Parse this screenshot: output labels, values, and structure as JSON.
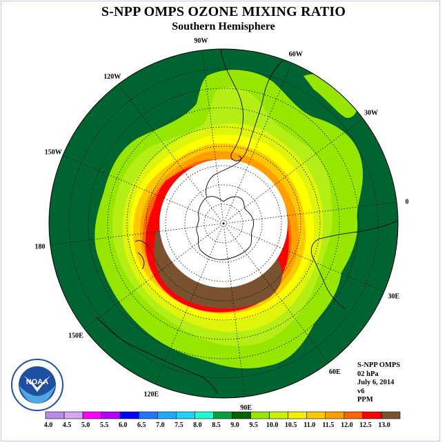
{
  "title": "S-NPP OMPS OZONE MIXING RATIO",
  "subtitle": "Southern Hemisphere",
  "meridian_labels": [
    "90W",
    "60W",
    "30W",
    "0",
    "30E",
    "60E",
    "90E",
    "120E",
    "150E",
    "180",
    "150W",
    "120W"
  ],
  "info": {
    "instrument": "S-NPP OMPS",
    "level": "02 hPa",
    "date": "July 6, 2014",
    "version": "v6",
    "units": "PPM"
  },
  "logo": {
    "name": "NOAA",
    "ring_text": "NATIONAL OCEANIC AND ATMOSPHERIC ADMINISTRATION · U.S. DEPARTMENT OF COMMERCE"
  },
  "colorbar": {
    "labels": [
      "4.0",
      "4.5",
      "5.0",
      "5.5",
      "6.0",
      "6.5",
      "7.0",
      "7.5",
      "8.0",
      "8.5",
      "9.0",
      "9.5",
      "10.0",
      "10.5",
      "11.0",
      "11.5",
      "12.0",
      "12.5",
      "13.0"
    ],
    "colors": [
      "#b88ce6",
      "#d6a8f0",
      "#ff00ff",
      "#b400ff",
      "#0000ff",
      "#1e78ff",
      "#1eaaff",
      "#1ed2ff",
      "#1effd2",
      "#00a03c",
      "#006400",
      "#96e600",
      "#c8f000",
      "#f0f000",
      "#ffc800",
      "#ffa000",
      "#ff6400",
      "#ff0000",
      "#7a5230"
    ]
  },
  "map_colors": {
    "ocean_bg": "#006430",
    "c9": "#96e600",
    "c95": "#b4ee14",
    "c10": "#dcf50a",
    "c105": "#ffff00",
    "c11": "#ffc800",
    "c115": "#ffa000",
    "c12": "#ff6400",
    "c125": "#ff0000",
    "c13": "#7a5230",
    "polar_night": "#ffffff"
  }
}
